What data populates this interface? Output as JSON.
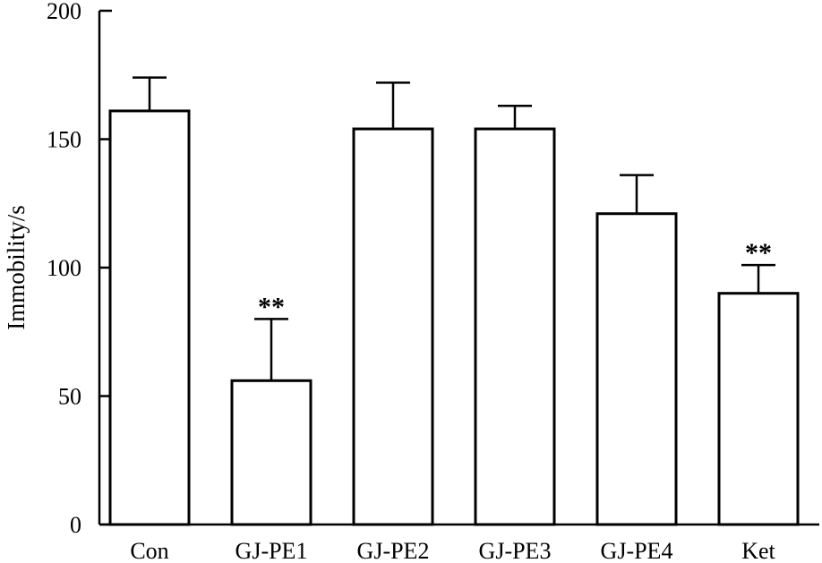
{
  "chart_data": {
    "type": "bar",
    "categories": [
      "Con",
      "GJ-PE1",
      "GJ-PE2",
      "GJ-PE3",
      "GJ-PE4",
      "Ket"
    ],
    "values": [
      161,
      56,
      154,
      154,
      121,
      90
    ],
    "error_upper": [
      174,
      80,
      172,
      163,
      136,
      101
    ],
    "annotations": [
      "",
      "**",
      "",
      "",
      "",
      "**"
    ],
    "ylabel": "Immobility/s",
    "xlabel": "",
    "title": "",
    "ylim": [
      0,
      200
    ],
    "yticks": [
      "0",
      "50",
      "100",
      "150",
      "200"
    ],
    "ytick_values": [
      0,
      50,
      100,
      150,
      200
    ],
    "grid": false,
    "bar_fill": "#ffffff",
    "bar_stroke": "#000000"
  }
}
